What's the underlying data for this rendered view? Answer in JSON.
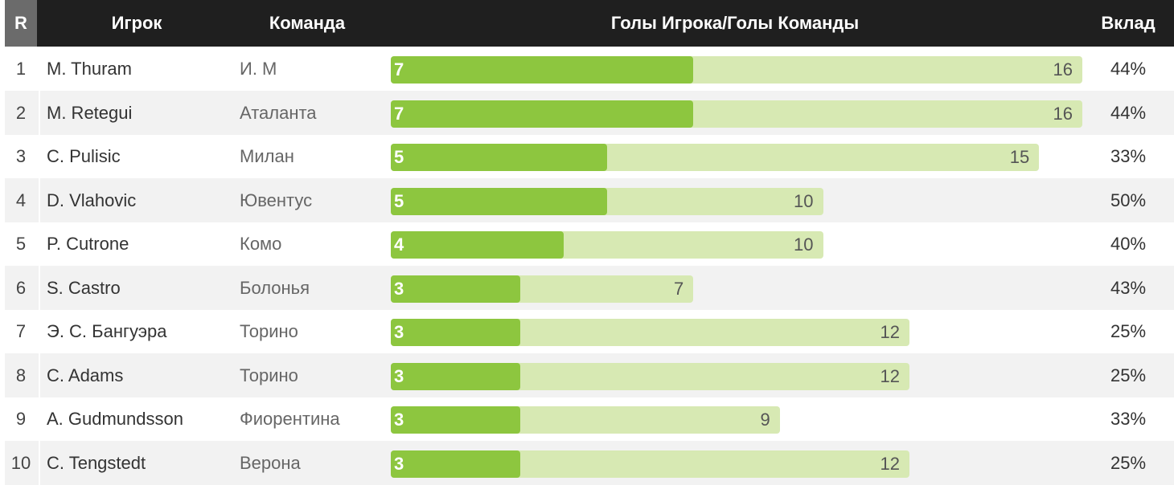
{
  "header": {
    "rank": "R",
    "player": "Игрок",
    "team": "Команда",
    "ratio": "Голы Игрока/Голы Команды",
    "contribution": "Вклад"
  },
  "colors": {
    "header_bg": "#1f1f1f",
    "rank_header_bg": "#6b6b6b",
    "player_goals_bar": "#8dc63f",
    "team_goals_bar": "#d7e9b3",
    "alt_row_bg": "#f2f2f2"
  },
  "chart_data": {
    "type": "bar",
    "title": "",
    "scale_max": 16,
    "rows": [
      {
        "rank": "1",
        "player": "M. Thuram",
        "team": "И. М",
        "player_goals": 7,
        "team_goals": 16,
        "contribution": "44%"
      },
      {
        "rank": "2",
        "player": "M. Retegui",
        "team": "Аталанта",
        "player_goals": 7,
        "team_goals": 16,
        "contribution": "44%"
      },
      {
        "rank": "3",
        "player": "C. Pulisic",
        "team": "Милан",
        "player_goals": 5,
        "team_goals": 15,
        "contribution": "33%"
      },
      {
        "rank": "4",
        "player": "D. Vlahovic",
        "team": "Ювентус",
        "player_goals": 5,
        "team_goals": 10,
        "contribution": "50%"
      },
      {
        "rank": "5",
        "player": "P. Cutrone",
        "team": "Комо",
        "player_goals": 4,
        "team_goals": 10,
        "contribution": "40%"
      },
      {
        "rank": "6",
        "player": "S. Castro",
        "team": "Болонья",
        "player_goals": 3,
        "team_goals": 7,
        "contribution": "43%"
      },
      {
        "rank": "7",
        "player": "Э. С. Бангуэра",
        "team": "Торино",
        "player_goals": 3,
        "team_goals": 12,
        "contribution": "25%"
      },
      {
        "rank": "8",
        "player": "C. Adams",
        "team": "Торино",
        "player_goals": 3,
        "team_goals": 12,
        "contribution": "25%"
      },
      {
        "rank": "9",
        "player": "A. Gudmundsson",
        "team": "Фиорентина",
        "player_goals": 3,
        "team_goals": 9,
        "contribution": "33%"
      },
      {
        "rank": "10",
        "player": "C. Tengstedt",
        "team": "Верона",
        "player_goals": 3,
        "team_goals": 12,
        "contribution": "25%"
      }
    ]
  }
}
